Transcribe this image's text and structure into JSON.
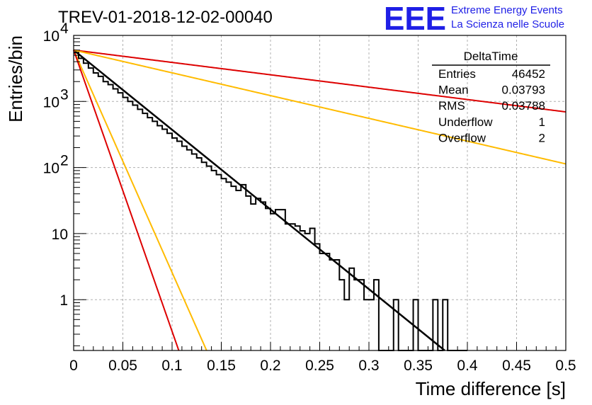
{
  "title": "TREV-01-2018-12-02-00040",
  "logo": {
    "mark": "EEE",
    "line1": "Extreme Energy Events",
    "line2": "La Scienza nelle Scuole",
    "color": "#1f1fe6"
  },
  "stats_box": {
    "name": "DeltaTime",
    "rows": [
      {
        "label": "Entries",
        "value": "46452"
      },
      {
        "label": "Mean",
        "value": "0.03793"
      },
      {
        "label": "RMS",
        "value": "0.03788"
      },
      {
        "label": "Underflow",
        "value": "1"
      },
      {
        "label": "Overflow",
        "value": "2"
      }
    ]
  },
  "chart_data": {
    "type": "line",
    "xlabel": "Time difference [s]",
    "ylabel": "Entries/bin",
    "xlim": [
      0,
      0.5
    ],
    "ylim": [
      0.17,
      10000
    ],
    "yscale": "log",
    "grid": true,
    "x_ticks": [
      "0",
      "0.05",
      "0.1",
      "0.15",
      "0.2",
      "0.25",
      "0.3",
      "0.35",
      "0.4",
      "0.45",
      "0.5"
    ],
    "y_ticks": [
      {
        "value": 1,
        "label": "1"
      },
      {
        "value": 10,
        "label": "10"
      },
      {
        "value": 100,
        "label": "10",
        "exp": "2"
      },
      {
        "value": 1000,
        "label": "10",
        "exp": "3"
      },
      {
        "value": 10000,
        "label": "10",
        "exp": "4"
      }
    ],
    "histogram": {
      "bin_width": 0.005,
      "color": "#000000",
      "counts": [
        5500,
        4500,
        3800,
        3200,
        2700,
        2400,
        2000,
        1800,
        1550,
        1350,
        1150,
        1000,
        880,
        760,
        660,
        570,
        500,
        430,
        380,
        330,
        280,
        250,
        210,
        185,
        160,
        140,
        120,
        105,
        90,
        78,
        68,
        60,
        52,
        45,
        55,
        37,
        28,
        34,
        30,
        24,
        20,
        23,
        23,
        14,
        14,
        13,
        11,
        10,
        12,
        7,
        5,
        5,
        4,
        4,
        2,
        1,
        3,
        2,
        2,
        1,
        1,
        2,
        0,
        0,
        0,
        1,
        0,
        0,
        0,
        1,
        0,
        0,
        0,
        1,
        0,
        1,
        0,
        0,
        0,
        0
      ]
    },
    "curves": [
      {
        "color": "#000000",
        "A": 6000,
        "tau": 0.036,
        "xmax": 0.4
      },
      {
        "color": "#dd0000",
        "A": 6000,
        "tau": 0.232,
        "xmax": 0.5
      },
      {
        "color": "#ffbb00",
        "A": 6000,
        "tau": 0.126,
        "xmax": 0.5
      },
      {
        "color": "#ffbb00",
        "A": 6000,
        "tau": 0.0129,
        "xmax": 0.5
      },
      {
        "color": "#dd0000",
        "A": 6000,
        "tau": 0.0102,
        "xmax": 0.5
      }
    ]
  }
}
